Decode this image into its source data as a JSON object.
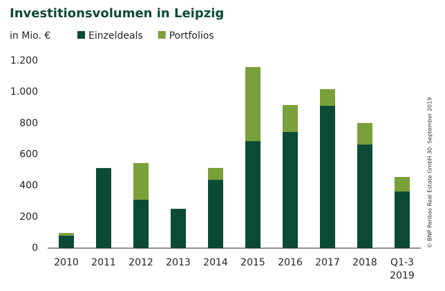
{
  "chart_data": {
    "type": "stacked_bar",
    "title": "Investitionsvolumen in Leipzig",
    "subtitle": "in Mio. €",
    "source_note": "© BNP Paribas Real Estate GmbH 30. September 2019",
    "categories": [
      "2010",
      "2011",
      "2012",
      "2013",
      "2014",
      "2015",
      "2016",
      "2017",
      "2018",
      "Q1-3 2019"
    ],
    "series": [
      {
        "name": "Einzeldeals",
        "color": "#0b4a35",
        "values": [
          80,
          513,
          310,
          252,
          438,
          686,
          744,
          912,
          664,
          363
        ]
      },
      {
        "name": "Portfolios",
        "color": "#7aa03a",
        "values": [
          17,
          0,
          235,
          0,
          76,
          474,
          173,
          107,
          138,
          93
        ]
      }
    ],
    "ylim": [
      0,
      1200
    ],
    "yticks": [
      0,
      200,
      400,
      600,
      800,
      {
        "value": 1000,
        "label": "1.000"
      },
      {
        "value": 1200,
        "label": "1.200"
      }
    ],
    "grid": false
  }
}
